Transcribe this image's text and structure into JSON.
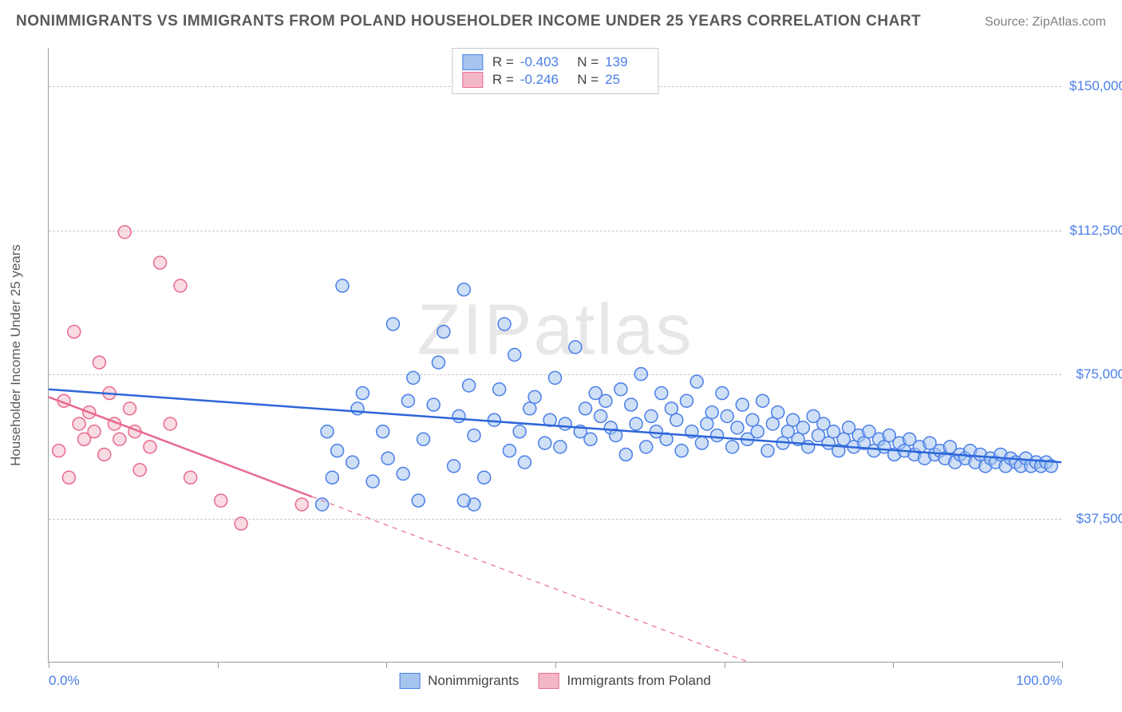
{
  "header": {
    "title": "NONIMMIGRANTS VS IMMIGRANTS FROM POLAND HOUSEHOLDER INCOME UNDER 25 YEARS CORRELATION CHART",
    "source": "Source: ZipAtlas.com"
  },
  "chart": {
    "type": "scatter",
    "watermark": "ZIPatlas",
    "background_color": "#ffffff",
    "grid_color": "#c8c8c8",
    "axis_color": "#9a9a9a",
    "tick_label_color": "#4a7ee8",
    "axis_title_color": "#5a5a5a",
    "y_axis_title": "Householder Income Under 25 years",
    "xlim": [
      0,
      100
    ],
    "ylim": [
      0,
      160000
    ],
    "x_ticks": [
      0,
      16.67,
      33.33,
      50,
      66.67,
      83.33,
      100
    ],
    "x_tick_labels": {
      "0": "0.0%",
      "100": "100.0%"
    },
    "y_gridlines": [
      37500,
      75000,
      112500,
      150000
    ],
    "y_tick_labels": {
      "37500": "$37,500",
      "75000": "$75,000",
      "112500": "$112,500",
      "150000": "$150,000"
    },
    "marker_radius": 8,
    "marker_stroke_width": 1.5,
    "series": [
      {
        "id": "nonimmigrants",
        "label": "Nonimmigrants",
        "fill_color": "#a6c5ee",
        "stroke_color": "#4a7ee8",
        "fill_opacity": 0.55,
        "stats": {
          "R": "-0.403",
          "N": "139"
        },
        "trend": {
          "solid": {
            "x1": 0,
            "y1": 71000,
            "x2": 100,
            "y2": 52000
          },
          "line_color": "#2d66d8",
          "line_width": 2.5
        },
        "points": [
          [
            27,
            41000
          ],
          [
            27.5,
            60000
          ],
          [
            28,
            48000
          ],
          [
            28.5,
            55000
          ],
          [
            29,
            98000
          ],
          [
            30,
            52000
          ],
          [
            30.5,
            66000
          ],
          [
            31,
            70000
          ],
          [
            32,
            47000
          ],
          [
            33,
            60000
          ],
          [
            33.5,
            53000
          ],
          [
            34,
            88000
          ],
          [
            35,
            49000
          ],
          [
            35.5,
            68000
          ],
          [
            36,
            74000
          ],
          [
            36.5,
            42000
          ],
          [
            37,
            58000
          ],
          [
            38,
            67000
          ],
          [
            38.5,
            78000
          ],
          [
            39,
            86000
          ],
          [
            40,
            51000
          ],
          [
            40.5,
            64000
          ],
          [
            41,
            97000
          ],
          [
            41.5,
            72000
          ],
          [
            42,
            59000
          ],
          [
            43,
            48000
          ],
          [
            44,
            63000
          ],
          [
            44.5,
            71000
          ],
          [
            45,
            88000
          ],
          [
            45.5,
            55000
          ],
          [
            46,
            80000
          ],
          [
            46.5,
            60000
          ],
          [
            47,
            52000
          ],
          [
            47.5,
            66000
          ],
          [
            48,
            69000
          ],
          [
            49,
            57000
          ],
          [
            49.5,
            63000
          ],
          [
            50,
            74000
          ],
          [
            50.5,
            56000
          ],
          [
            51,
            62000
          ],
          [
            52,
            82000
          ],
          [
            52.5,
            60000
          ],
          [
            53,
            66000
          ],
          [
            53.5,
            58000
          ],
          [
            54,
            70000
          ],
          [
            54.5,
            64000
          ],
          [
            55,
            68000
          ],
          [
            55.5,
            61000
          ],
          [
            56,
            59000
          ],
          [
            56.5,
            71000
          ],
          [
            57,
            54000
          ],
          [
            57.5,
            67000
          ],
          [
            58,
            62000
          ],
          [
            58.5,
            75000
          ],
          [
            59,
            56000
          ],
          [
            59.5,
            64000
          ],
          [
            60,
            60000
          ],
          [
            60.5,
            70000
          ],
          [
            61,
            58000
          ],
          [
            61.5,
            66000
          ],
          [
            62,
            63000
          ],
          [
            62.5,
            55000
          ],
          [
            63,
            68000
          ],
          [
            63.5,
            60000
          ],
          [
            64,
            73000
          ],
          [
            64.5,
            57000
          ],
          [
            65,
            62000
          ],
          [
            65.5,
            65000
          ],
          [
            66,
            59000
          ],
          [
            66.5,
            70000
          ],
          [
            67,
            64000
          ],
          [
            67.5,
            56000
          ],
          [
            68,
            61000
          ],
          [
            68.5,
            67000
          ],
          [
            69,
            58000
          ],
          [
            69.5,
            63000
          ],
          [
            70,
            60000
          ],
          [
            70.5,
            68000
          ],
          [
            71,
            55000
          ],
          [
            71.5,
            62000
          ],
          [
            72,
            65000
          ],
          [
            72.5,
            57000
          ],
          [
            73,
            60000
          ],
          [
            73.5,
            63000
          ],
          [
            74,
            58000
          ],
          [
            74.5,
            61000
          ],
          [
            75,
            56000
          ],
          [
            75.5,
            64000
          ],
          [
            76,
            59000
          ],
          [
            76.5,
            62000
          ],
          [
            77,
            57000
          ],
          [
            77.5,
            60000
          ],
          [
            78,
            55000
          ],
          [
            78.5,
            58000
          ],
          [
            79,
            61000
          ],
          [
            79.5,
            56000
          ],
          [
            80,
            59000
          ],
          [
            80.5,
            57000
          ],
          [
            81,
            60000
          ],
          [
            81.5,
            55000
          ],
          [
            82,
            58000
          ],
          [
            82.5,
            56000
          ],
          [
            83,
            59000
          ],
          [
            83.5,
            54000
          ],
          [
            84,
            57000
          ],
          [
            84.5,
            55000
          ],
          [
            85,
            58000
          ],
          [
            85.5,
            54000
          ],
          [
            86,
            56000
          ],
          [
            86.5,
            53000
          ],
          [
            87,
            57000
          ],
          [
            87.5,
            54000
          ],
          [
            88,
            55000
          ],
          [
            88.5,
            53000
          ],
          [
            89,
            56000
          ],
          [
            89.5,
            52000
          ],
          [
            90,
            54000
          ],
          [
            90.5,
            53000
          ],
          [
            91,
            55000
          ],
          [
            91.5,
            52000
          ],
          [
            92,
            54000
          ],
          [
            92.5,
            51000
          ],
          [
            93,
            53000
          ],
          [
            93.5,
            52000
          ],
          [
            94,
            54000
          ],
          [
            94.5,
            51000
          ],
          [
            95,
            53000
          ],
          [
            95.5,
            52000
          ],
          [
            96,
            51000
          ],
          [
            96.5,
            53000
          ],
          [
            97,
            51000
          ],
          [
            97.5,
            52000
          ],
          [
            98,
            51000
          ],
          [
            98.5,
            52000
          ],
          [
            99,
            51000
          ],
          [
            42,
            41000
          ],
          [
            41,
            42000
          ]
        ]
      },
      {
        "id": "immigrants_poland",
        "label": "Immigrants from Poland",
        "fill_color": "#f3b8c8",
        "stroke_color": "#e86a8e",
        "fill_opacity": 0.5,
        "stats": {
          "R": "-0.246",
          "N": "25"
        },
        "trend": {
          "solid": {
            "x1": 0,
            "y1": 69000,
            "x2": 26,
            "y2": 43000
          },
          "dashed": {
            "x1": 26,
            "y1": 43000,
            "x2": 86,
            "y2": -17000
          },
          "line_color": "#e86a8e",
          "line_width": 2.5
        },
        "points": [
          [
            1,
            55000
          ],
          [
            1.5,
            68000
          ],
          [
            2,
            48000
          ],
          [
            2.5,
            86000
          ],
          [
            3,
            62000
          ],
          [
            3.5,
            58000
          ],
          [
            4,
            65000
          ],
          [
            4.5,
            60000
          ],
          [
            5,
            78000
          ],
          [
            5.5,
            54000
          ],
          [
            6,
            70000
          ],
          [
            6.5,
            62000
          ],
          [
            7,
            58000
          ],
          [
            7.5,
            112000
          ],
          [
            8,
            66000
          ],
          [
            8.5,
            60000
          ],
          [
            9,
            50000
          ],
          [
            10,
            56000
          ],
          [
            11,
            104000
          ],
          [
            12,
            62000
          ],
          [
            13,
            98000
          ],
          [
            14,
            48000
          ],
          [
            17,
            42000
          ],
          [
            19,
            36000
          ],
          [
            25,
            41000
          ]
        ]
      }
    ]
  }
}
